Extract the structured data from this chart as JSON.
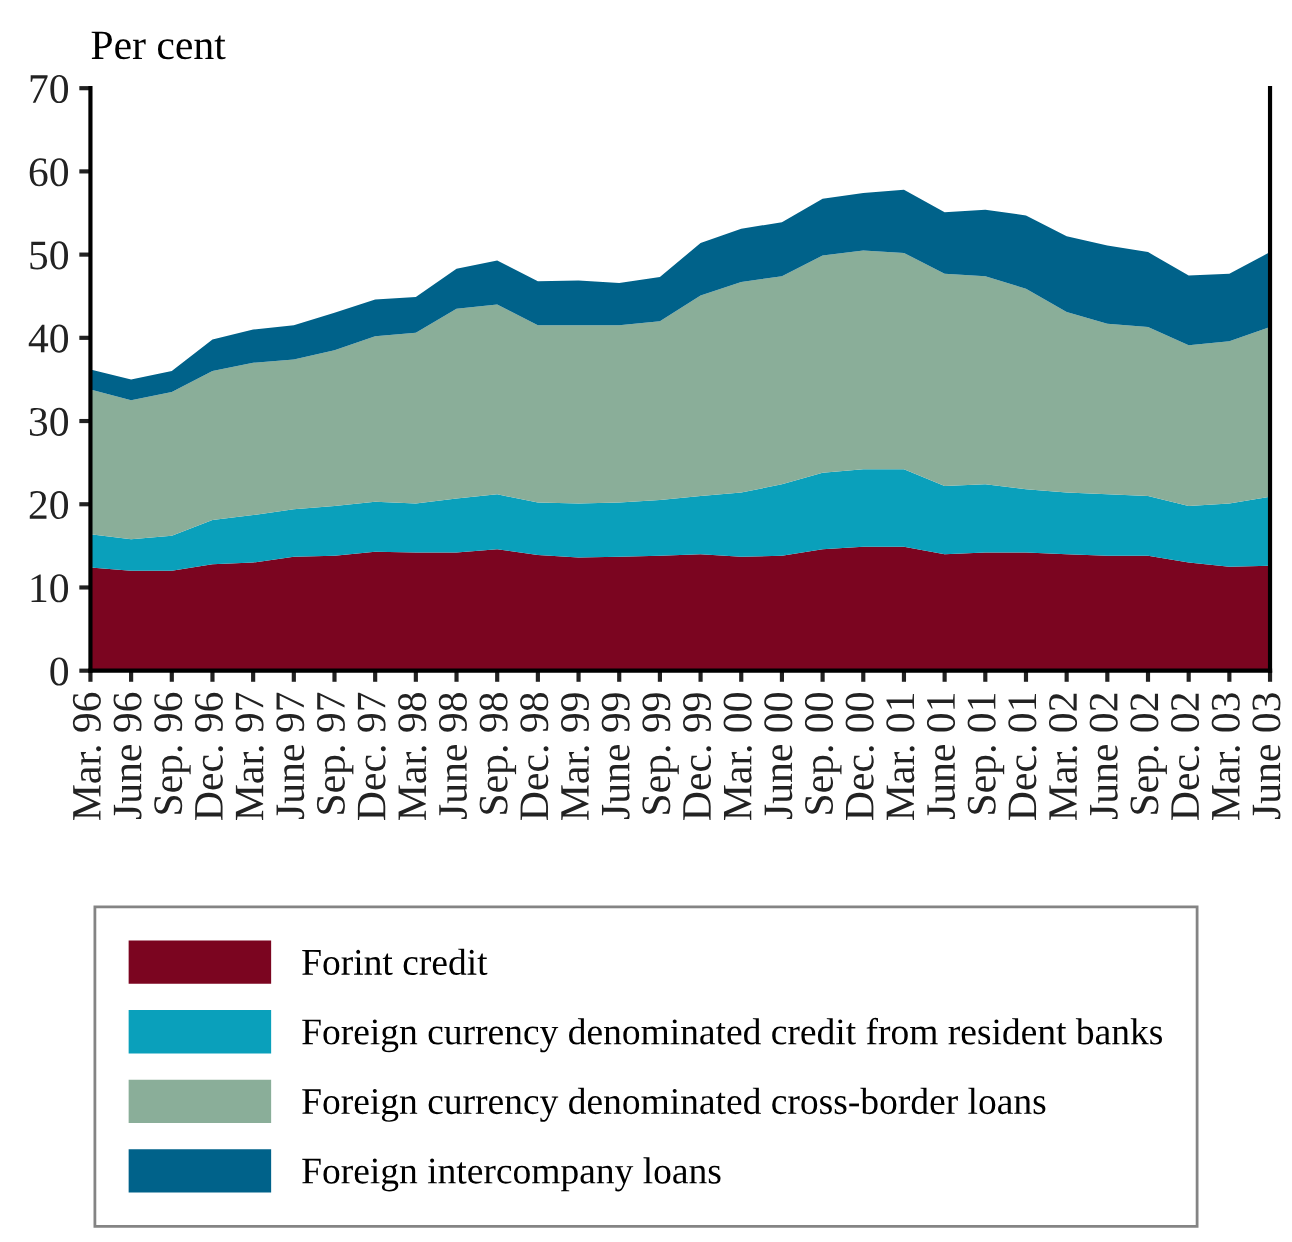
{
  "chart_data": {
    "type": "area",
    "stacked": true,
    "ylabel": "Per cent",
    "categories": [
      "Mar. 96",
      "June 96",
      "Sep. 96",
      "Dec. 96",
      "Mar. 97",
      "June 97",
      "Sep. 97",
      "Dec. 97",
      "Mar. 98",
      "June 98",
      "Sep. 98",
      "Dec. 98",
      "Mar. 99",
      "June 99",
      "Sep. 99",
      "Dec. 99",
      "Mar. 00",
      "June 00",
      "Sep. 00",
      "Dec. 00",
      "Mar. 01",
      "June 01",
      "Sep. 01",
      "Dec. 01",
      "Mar. 02",
      "June 02",
      "Sep. 02",
      "Dec. 02",
      "Mar. 03",
      "June 03"
    ],
    "series": [
      {
        "name": "Forint credit",
        "color": "#7b0520",
        "values": [
          12.4,
          12.0,
          12.0,
          12.8,
          13.0,
          13.7,
          13.8,
          14.3,
          14.2,
          14.2,
          14.6,
          13.9,
          13.6,
          13.7,
          13.8,
          14.0,
          13.7,
          13.8,
          14.6,
          14.9,
          14.9,
          14.0,
          14.2,
          14.2,
          14.0,
          13.8,
          13.8,
          13.0,
          12.5,
          12.6
        ]
      },
      {
        "name": "Foreign currency denominated credit from resident banks",
        "color": "#0aa0bb",
        "values": [
          4.0,
          3.8,
          4.2,
          5.3,
          5.7,
          5.7,
          6.0,
          6.0,
          5.9,
          6.5,
          6.6,
          6.3,
          6.5,
          6.5,
          6.7,
          7.0,
          7.7,
          8.6,
          9.2,
          9.3,
          9.3,
          8.2,
          8.2,
          7.6,
          7.4,
          7.4,
          7.2,
          6.8,
          7.6,
          8.3
        ]
      },
      {
        "name": "Foreign currency denominated cross-border loans",
        "color": "#8aae99",
        "values": [
          17.4,
          16.7,
          17.3,
          17.9,
          18.3,
          18.0,
          18.7,
          19.9,
          20.5,
          22.8,
          22.8,
          21.3,
          21.4,
          21.3,
          21.5,
          24.1,
          25.3,
          25.0,
          26.1,
          26.3,
          26.0,
          25.5,
          25.0,
          24.1,
          21.7,
          20.5,
          20.3,
          19.3,
          19.5,
          20.4
        ]
      },
      {
        "name": "Foreign intercompany loans",
        "color": "#00628a",
        "values": [
          2.4,
          2.5,
          2.5,
          3.8,
          4.0,
          4.1,
          4.5,
          4.4,
          4.3,
          4.8,
          5.3,
          5.3,
          5.4,
          5.1,
          5.3,
          6.3,
          6.4,
          6.5,
          6.8,
          6.9,
          7.6,
          7.4,
          8.0,
          8.8,
          9.1,
          9.4,
          9.0,
          8.4,
          8.1,
          9.0
        ]
      }
    ],
    "ylim": [
      0,
      70
    ],
    "yticks": [
      0,
      10,
      20,
      30,
      40,
      50,
      60,
      70
    ],
    "grid": false,
    "legend": "bottom"
  }
}
